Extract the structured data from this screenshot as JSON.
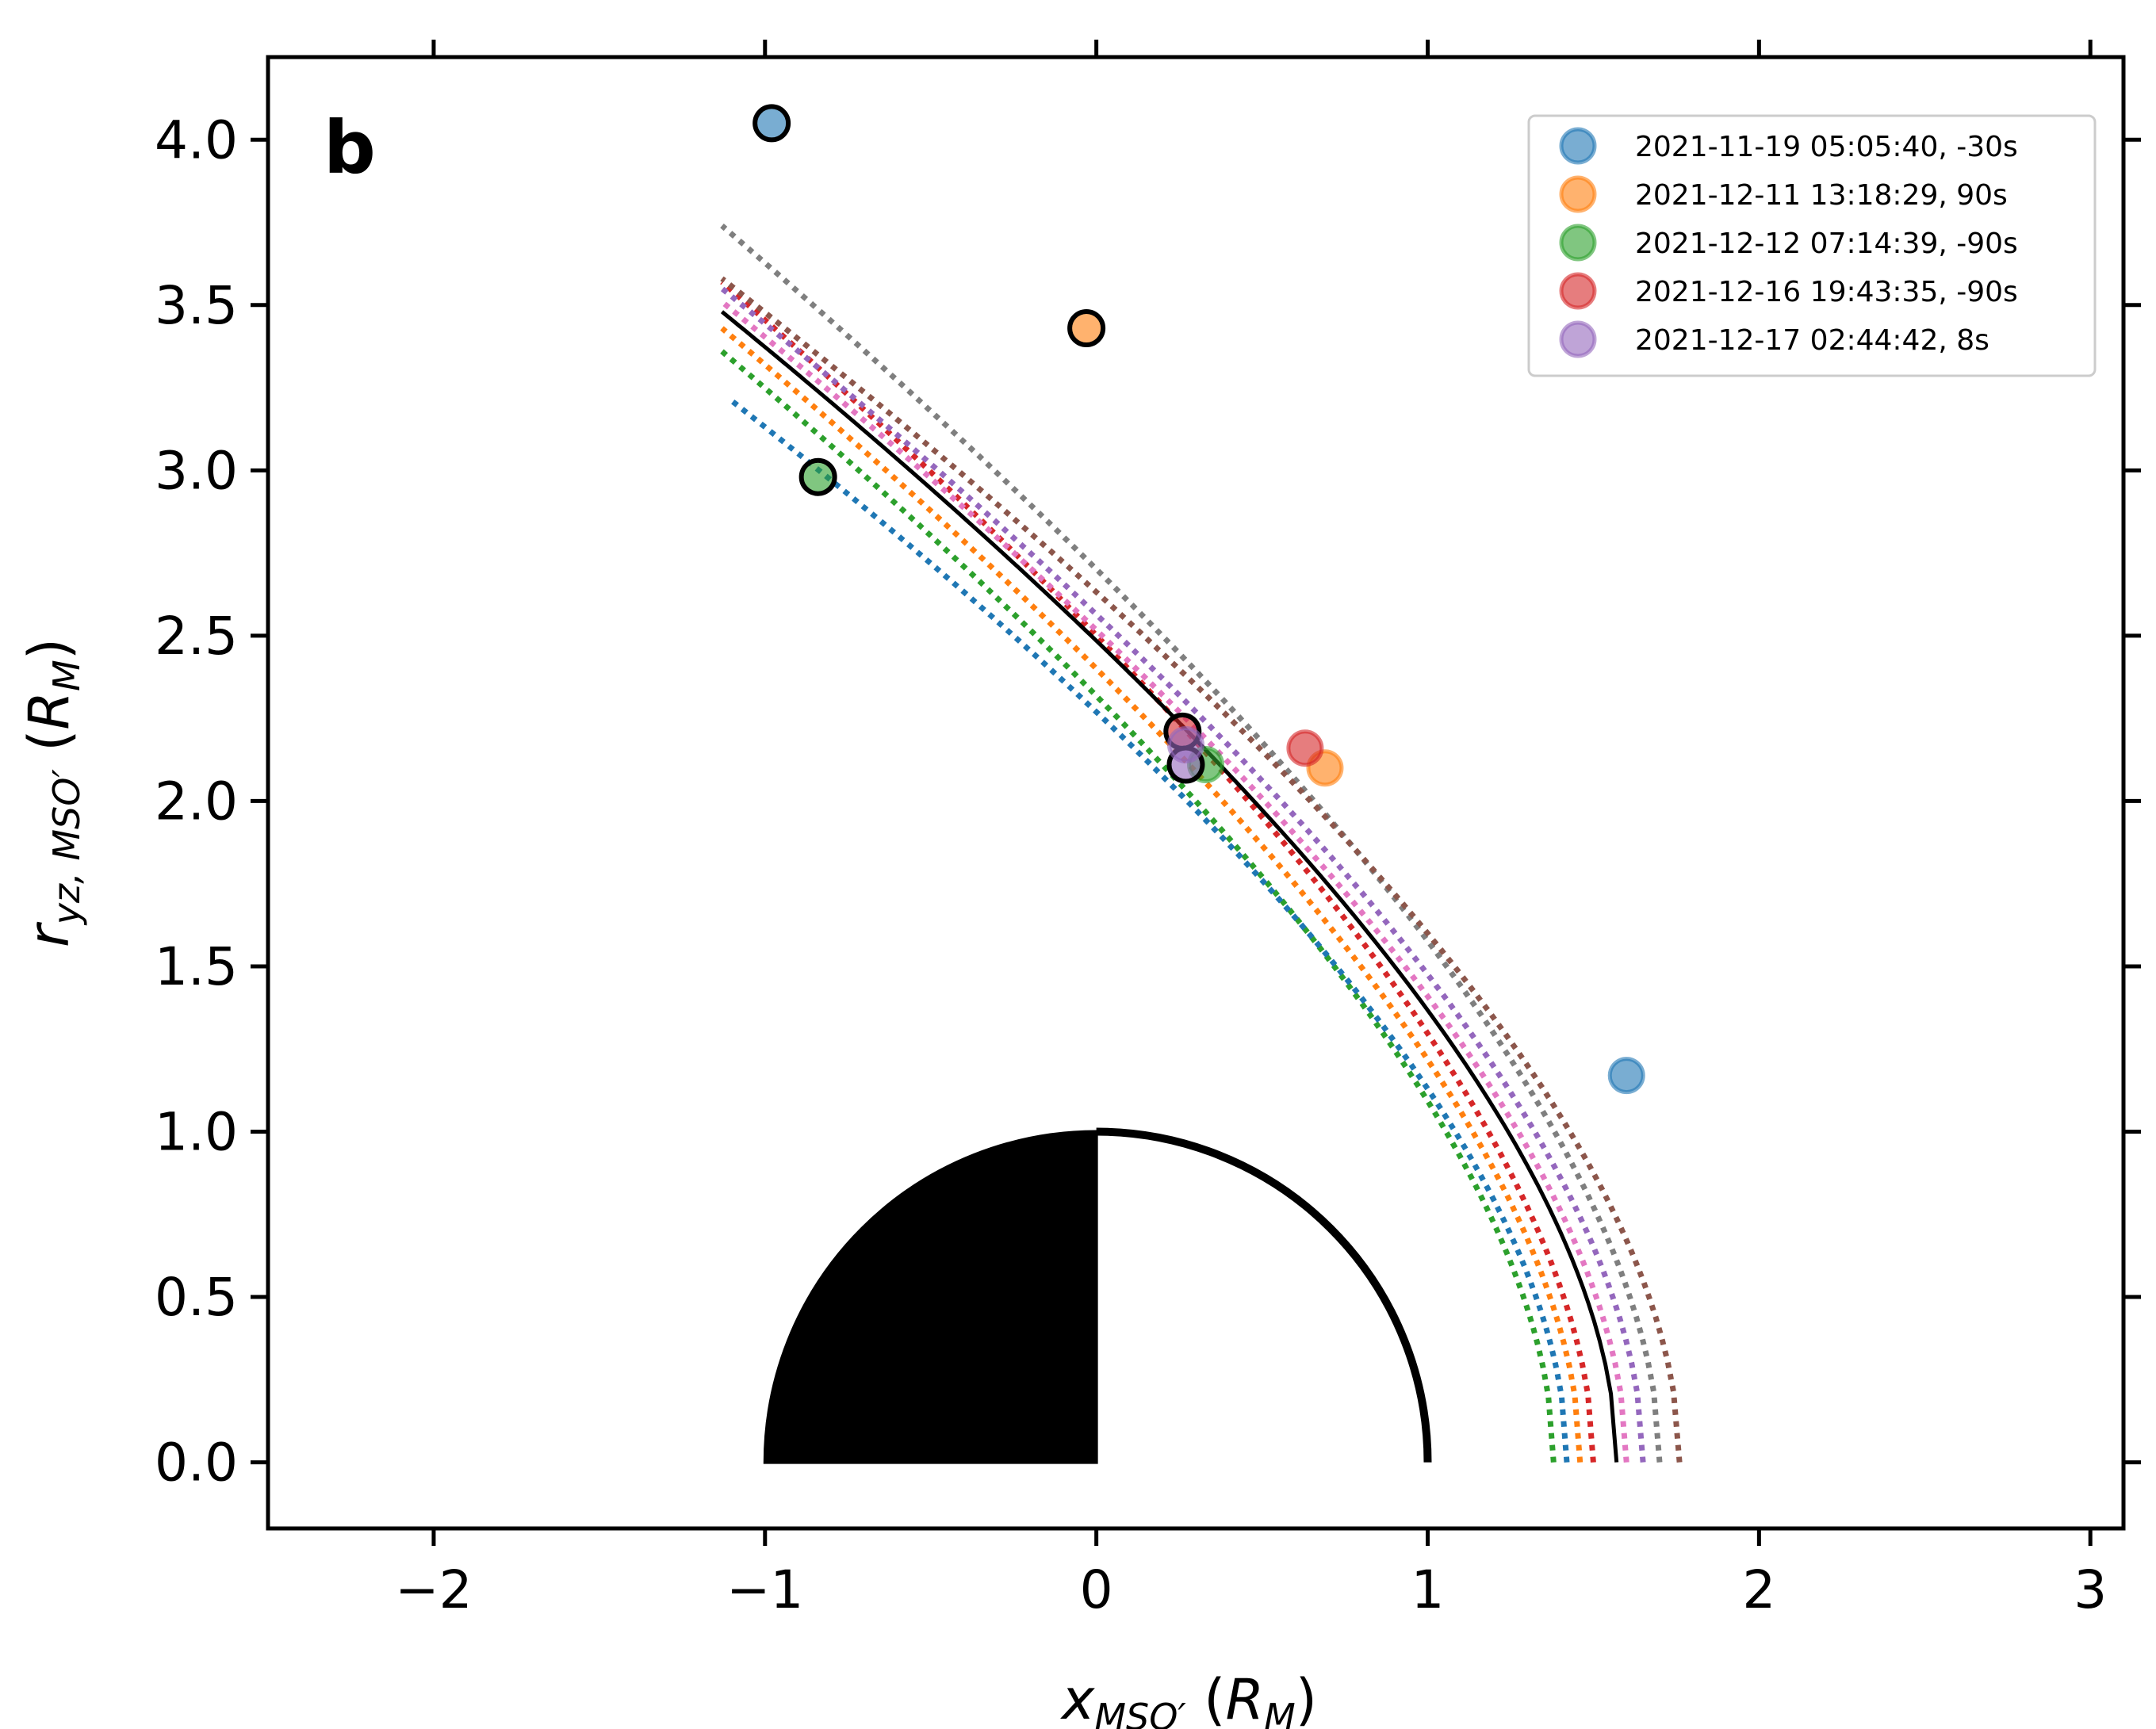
{
  "colors": {
    "blue": "#1f77b4",
    "orange": "#ff7f0e",
    "green": "#2ca02c",
    "red": "#d62728",
    "purple": "#9467bd",
    "brown": "#8c564b",
    "pink": "#e377c2",
    "gray": "#7f7f7f",
    "black": "#000000"
  },
  "chart_data": {
    "type": "scatter",
    "panel_label": "b",
    "xlabel": "x_{MSO'} (R_M)",
    "ylabel": "r_{yz,MSO'} (R_M)",
    "xlim": [
      -2.5,
      3.1
    ],
    "ylim": [
      -0.2,
      4.25
    ],
    "xticks": [
      -2,
      -1,
      0,
      1,
      2,
      3
    ],
    "xtick_labels": [
      "−2",
      "−1",
      "0",
      "1",
      "2",
      "3"
    ],
    "yticks": [
      0.0,
      0.5,
      1.0,
      1.5,
      2.0,
      2.5,
      3.0,
      3.5,
      4.0
    ],
    "ytick_labels": [
      "0.0",
      "0.5",
      "1.0",
      "1.5",
      "2.0",
      "2.5",
      "3.0",
      "3.5",
      "4.0"
    ],
    "grid": false,
    "legend_position": "top-right",
    "events": [
      {
        "label": "2021-11-19 05:05:40, -30s",
        "color": "blue",
        "points": [
          {
            "x": -0.98,
            "y": 4.05,
            "outlined": true
          },
          {
            "x": 1.6,
            "y": 1.17,
            "outlined": false
          }
        ]
      },
      {
        "label": "2021-12-11 13:18:29, 90s",
        "color": "orange",
        "points": [
          {
            "x": -0.03,
            "y": 3.43,
            "outlined": true
          },
          {
            "x": 0.69,
            "y": 2.1,
            "outlined": false
          }
        ]
      },
      {
        "label": "2021-12-12 07:14:39, -90s",
        "color": "green",
        "points": [
          {
            "x": -0.84,
            "y": 2.98,
            "outlined": true
          },
          {
            "x": 0.33,
            "y": 2.11,
            "outlined": false
          }
        ]
      },
      {
        "label": "2021-12-16 19:43:35, -90s",
        "color": "red",
        "points": [
          {
            "x": 0.26,
            "y": 2.21,
            "outlined": true
          },
          {
            "x": 0.63,
            "y": 2.16,
            "outlined": false
          }
        ]
      },
      {
        "label": "2021-12-17 02:44:42, 8s",
        "color": "purple",
        "points": [
          {
            "x": 0.27,
            "y": 2.11,
            "outlined": true
          },
          {
            "x": 0.27,
            "y": 2.17,
            "outlined": false
          }
        ]
      }
    ],
    "boundary_curves": [
      {
        "color": "green",
        "style": "dotted",
        "x0": 1.38,
        "top_x": -1.13,
        "top_y": 3.36
      },
      {
        "color": "blue",
        "style": "dotted",
        "x0": 1.42,
        "top_x": -1.1,
        "top_y": 3.21
      },
      {
        "color": "orange",
        "style": "dotted",
        "x0": 1.46,
        "top_x": -1.13,
        "top_y": 3.43
      },
      {
        "color": "red",
        "style": "dotted",
        "x0": 1.5,
        "top_x": -1.13,
        "top_y": 3.57
      },
      {
        "color": "black",
        "style": "solid",
        "x0": 1.57,
        "top_x": -1.13,
        "top_y": 3.48
      },
      {
        "color": "pink",
        "style": "dotted",
        "x0": 1.6,
        "top_x": -1.13,
        "top_y": 3.51
      },
      {
        "color": "purple",
        "style": "dotted",
        "x0": 1.65,
        "top_x": -1.13,
        "top_y": 3.55
      },
      {
        "color": "gray",
        "style": "dotted",
        "x0": 1.7,
        "top_x": -1.13,
        "top_y": 3.74
      },
      {
        "color": "brown",
        "style": "dotted",
        "x0": 1.76,
        "top_x": -1.13,
        "top_y": 3.58
      }
    ],
    "planet": {
      "radius": 1.0,
      "nightside": "filled-black",
      "dayside": "white-outlined"
    }
  }
}
